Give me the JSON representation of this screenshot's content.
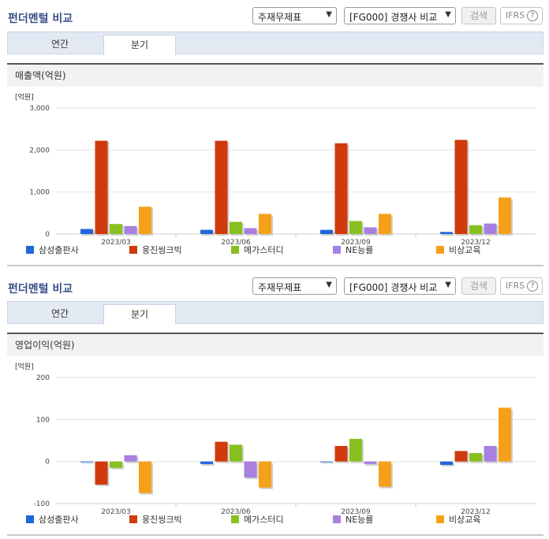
{
  "panels": [
    {
      "title": "펀더멘털 비교",
      "select1": "주재무제표",
      "select2": "[FG000] 경쟁사 비교",
      "search_label": "검색",
      "ifrs_label": "IFRS",
      "help_icon": "?",
      "tabs": [
        "연간",
        "분기"
      ],
      "active_tab": 1,
      "section_title": "매출액(억원)",
      "colors": [
        "#2266dd",
        "#d03a0c",
        "#88c020",
        "#a880e0",
        "#f6a01a"
      ]
    },
    {
      "title": "펀더멘털 비교",
      "select1": "주재무제표",
      "select2": "[FG000] 경쟁사 비교",
      "search_label": "검색",
      "ifrs_label": "IFRS",
      "help_icon": "?",
      "tabs": [
        "연간",
        "분기"
      ],
      "active_tab": 1,
      "section_title": "영업이익(억원)",
      "colors": [
        "#2266dd",
        "#d03a0c",
        "#88c020",
        "#a880e0",
        "#f6a01a"
      ]
    }
  ],
  "chart_data": [
    {
      "type": "bar",
      "unit_label": "[억원]",
      "categories": [
        "2023/03",
        "2023/06",
        "2023/09",
        "2023/12"
      ],
      "ylim": [
        0,
        3000
      ],
      "yticks": [
        0,
        1000,
        2000,
        3000
      ],
      "ytick_labels": [
        "0",
        "1,000",
        "2,000",
        "3,000"
      ],
      "series": [
        {
          "name": "삼성출판사",
          "values": [
            120,
            100,
            100,
            50
          ]
        },
        {
          "name": "웅진씽크빅",
          "values": [
            2220,
            2220,
            2160,
            2240
          ]
        },
        {
          "name": "메가스터디",
          "values": [
            240,
            290,
            310,
            210
          ]
        },
        {
          "name": "NE능률",
          "values": [
            190,
            140,
            160,
            250
          ]
        },
        {
          "name": "비상교육",
          "values": [
            650,
            480,
            480,
            870
          ]
        }
      ]
    },
    {
      "type": "bar",
      "unit_label": "[억원]",
      "categories": [
        "2023/03",
        "2023/06",
        "2023/09",
        "2023/12"
      ],
      "ylim": [
        -100,
        200
      ],
      "yticks": [
        -100,
        0,
        100,
        200
      ],
      "ytick_labels": [
        "-100",
        "0",
        "100",
        "200"
      ],
      "series": [
        {
          "name": "삼성출판사",
          "values": [
            -1,
            -6,
            -1,
            -8
          ]
        },
        {
          "name": "웅진씽크빅",
          "values": [
            -55,
            47,
            37,
            25
          ]
        },
        {
          "name": "메가스터디",
          "values": [
            -15,
            40,
            54,
            20
          ]
        },
        {
          "name": "NE능률",
          "values": [
            15,
            -38,
            -6,
            37
          ]
        },
        {
          "name": "비상교육",
          "values": [
            -75,
            -62,
            -60,
            128
          ]
        }
      ]
    }
  ]
}
